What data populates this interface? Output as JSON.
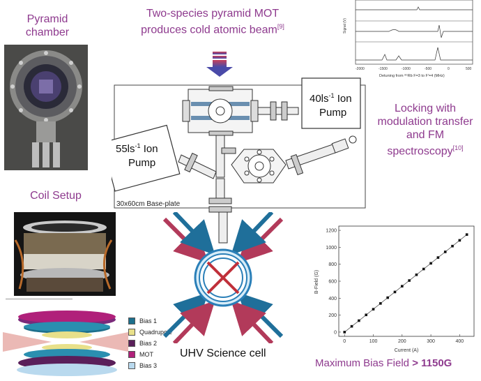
{
  "captions": {
    "pyramid_chamber": "Pyramid\nchamber",
    "mot_line1": "Two-species pyramid MOT",
    "mot_line2": "produces cold atomic beam",
    "mot_ref": "[9]",
    "locking_line1": "Locking with",
    "locking_line2": "modulation transfer",
    "locking_line3": "and FM",
    "locking_line4": "spectroscopy",
    "locking_ref": "[10]",
    "coil_setup": "Coil Setup",
    "uhv_cell": "UHV Science cell",
    "max_bias_prefix": "Maximum Bias Field ",
    "max_bias_value": "> 1150G"
  },
  "schematic": {
    "pump_40_a": "40ls",
    "pump_40_sup": "-1",
    "pump_40_b": " Ion",
    "pump_40_c": "Pump",
    "pump_55_a": "55ls",
    "pump_55_sup": "-1",
    "pump_55_b": " Ion",
    "pump_55_c": "Pump",
    "baseplate": "30x60cm Base-plate"
  },
  "legend": [
    {
      "label": "Bias 1",
      "color": "#1d6f8c"
    },
    {
      "label": "Quadrupole",
      "color": "#e8e08a"
    },
    {
      "label": "Bias 2",
      "color": "#5a1f5a"
    },
    {
      "label": "MOT",
      "color": "#b0207a"
    },
    {
      "label": "Bias 3",
      "color": "#b9d9ee"
    }
  ],
  "spectrum": {
    "ylabel": "Signal (V)",
    "xlabel": "Detuning from ⁸⁵Rb F=3 to F'=4 (MHz)",
    "xticks": [
      "-2000",
      "-1500",
      "-1000",
      "-500",
      "0",
      "500"
    ]
  },
  "chart_data": {
    "type": "scatter",
    "xlabel": "Current (A)",
    "ylabel": "B-Field (G)",
    "xlim": [
      -20,
      450
    ],
    "ylim": [
      -50,
      1250
    ],
    "xticks": [
      0,
      100,
      200,
      300,
      400
    ],
    "yticks": [
      0,
      200,
      400,
      600,
      800,
      1000,
      1200
    ],
    "series": [
      {
        "x": [
          0,
          25,
          50,
          75,
          100,
          125,
          150,
          175,
          200,
          225,
          250,
          275,
          300,
          325,
          350,
          375,
          400,
          425
        ],
        "y": [
          0,
          68,
          135,
          203,
          270,
          338,
          406,
          473,
          541,
          608,
          676,
          744,
          811,
          879,
          946,
          1014,
          1082,
          1150
        ]
      }
    ]
  }
}
